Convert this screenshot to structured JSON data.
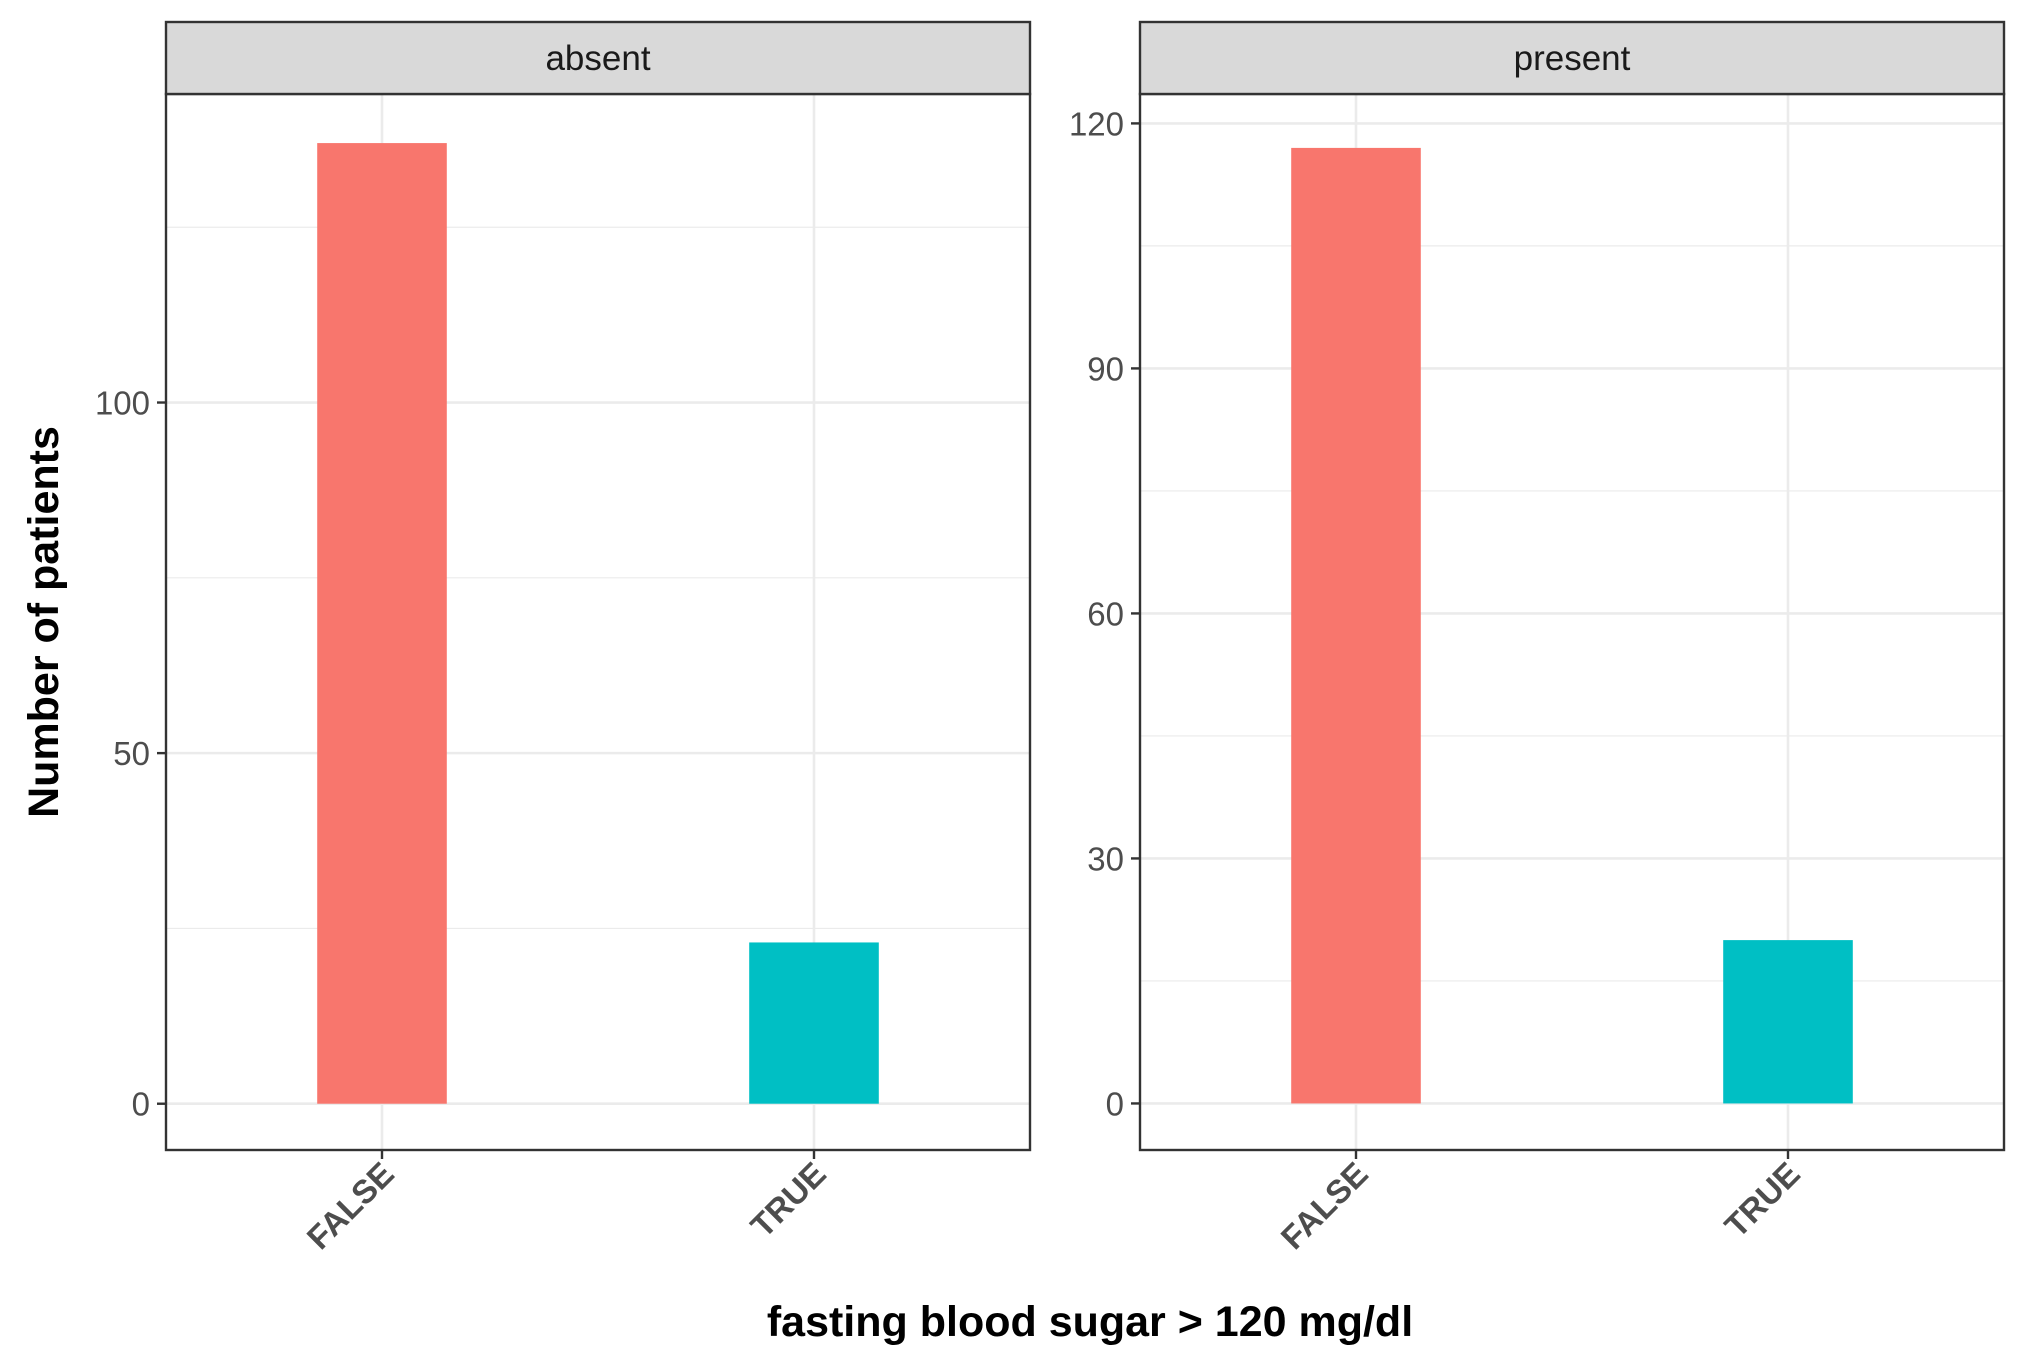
{
  "chart_data": {
    "type": "bar",
    "xlabel": "fasting blood sugar > 120 mg/dl",
    "ylabel": "Number of patients",
    "categories": [
      "FALSE",
      "TRUE"
    ],
    "colors": [
      "#F8766D",
      "#00BFC4"
    ],
    "grid": true,
    "legend": "none",
    "facets": [
      {
        "label": "absent",
        "values": [
          137,
          23
        ],
        "ylim": [
          -6.6,
          144
        ],
        "yticks": [
          0,
          50,
          100
        ],
        "minor_yticks": [
          25,
          75,
          125
        ]
      },
      {
        "label": "present",
        "values": [
          117,
          20
        ],
        "ylim": [
          -5.7,
          123.6
        ],
        "yticks": [
          0,
          30,
          60,
          90,
          120
        ],
        "minor_yticks": [
          15,
          45,
          75,
          105
        ]
      }
    ]
  }
}
